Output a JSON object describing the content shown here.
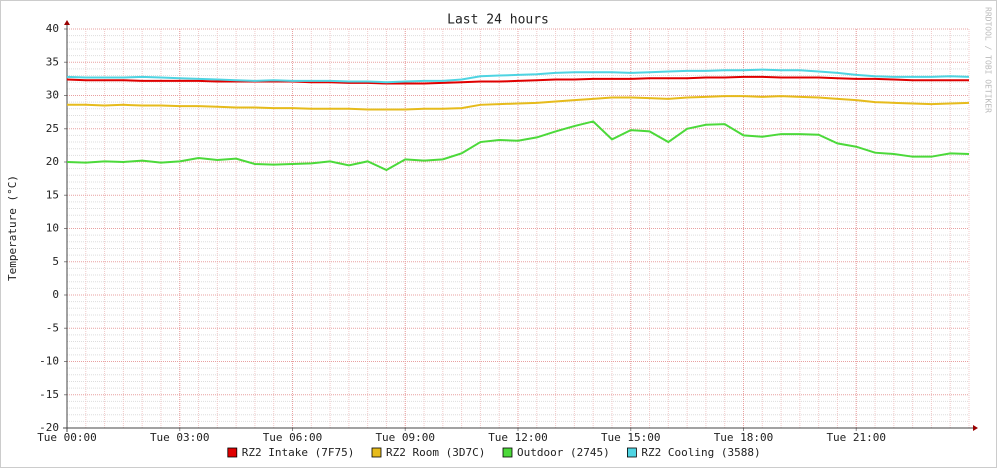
{
  "chart_data": {
    "type": "line",
    "title": "Last 24 hours",
    "ylabel": "Temperature (°C)",
    "watermark": "RRDTOOL / TOBI OETIKER",
    "x": [
      0,
      0.5,
      1,
      1.5,
      2,
      2.5,
      3,
      3.5,
      4,
      4.5,
      5,
      5.5,
      6,
      6.5,
      7,
      7.5,
      8,
      8.5,
      9,
      9.5,
      10,
      10.5,
      11,
      11.5,
      12,
      12.5,
      13,
      13.5,
      14,
      14.5,
      15,
      15.5,
      16,
      16.5,
      17,
      17.5,
      18,
      18.5,
      19,
      19.5,
      20,
      20.5,
      21,
      21.5,
      22,
      22.5,
      23,
      23.5,
      24
    ],
    "xlim": [
      0,
      24
    ],
    "xticks": [
      {
        "value": 0,
        "label": "Tue 00:00"
      },
      {
        "value": 3,
        "label": "Tue 03:00"
      },
      {
        "value": 6,
        "label": "Tue 06:00"
      },
      {
        "value": 9,
        "label": "Tue 09:00"
      },
      {
        "value": 12,
        "label": "Tue 12:00"
      },
      {
        "value": 15,
        "label": "Tue 15:00"
      },
      {
        "value": 18,
        "label": "Tue 18:00"
      },
      {
        "value": 21,
        "label": "Tue 21:00"
      }
    ],
    "ylim": [
      -20,
      40
    ],
    "yticks": [
      -20,
      -15,
      -10,
      -5,
      0,
      5,
      10,
      15,
      20,
      25,
      30,
      35,
      40
    ],
    "grid": true,
    "legend": "bottom",
    "series": [
      {
        "name": "RZ2 Intake (7F75)",
        "color": "#e00000",
        "values": [
          32.4,
          32.3,
          32.3,
          32.3,
          32.2,
          32.2,
          32.2,
          32.2,
          32.1,
          32.1,
          32.1,
          32.1,
          32.1,
          32.0,
          32.0,
          31.9,
          31.9,
          31.8,
          31.8,
          31.8,
          31.9,
          32.0,
          32.1,
          32.1,
          32.2,
          32.3,
          32.4,
          32.4,
          32.5,
          32.5,
          32.5,
          32.6,
          32.6,
          32.6,
          32.7,
          32.7,
          32.8,
          32.8,
          32.7,
          32.7,
          32.7,
          32.6,
          32.5,
          32.5,
          32.4,
          32.3,
          32.3,
          32.3,
          32.3
        ]
      },
      {
        "name": "RZ2 Room (3D7C)",
        "color": "#e6bb1c",
        "values": [
          28.6,
          28.6,
          28.5,
          28.6,
          28.5,
          28.5,
          28.4,
          28.4,
          28.3,
          28.2,
          28.2,
          28.1,
          28.1,
          28.0,
          28.0,
          28.0,
          27.9,
          27.9,
          27.9,
          28.0,
          28.0,
          28.1,
          28.6,
          28.7,
          28.8,
          28.9,
          29.1,
          29.3,
          29.5,
          29.7,
          29.7,
          29.6,
          29.5,
          29.7,
          29.8,
          29.9,
          29.9,
          29.8,
          29.9,
          29.8,
          29.7,
          29.5,
          29.3,
          29.0,
          28.9,
          28.8,
          28.7,
          28.8,
          28.9
        ]
      },
      {
        "name": "Outdoor (2745)",
        "color": "#4cd93a",
        "values": [
          20.0,
          19.9,
          20.1,
          20.0,
          20.2,
          19.9,
          20.1,
          20.6,
          20.3,
          20.5,
          19.7,
          19.6,
          19.7,
          19.8,
          20.1,
          19.5,
          20.1,
          18.8,
          20.4,
          20.2,
          20.4,
          21.3,
          23.0,
          23.3,
          23.2,
          23.7,
          24.6,
          25.4,
          26.1,
          23.4,
          24.8,
          24.6,
          23.0,
          25.0,
          25.6,
          25.7,
          24.0,
          23.8,
          24.2,
          24.2,
          24.1,
          22.8,
          22.3,
          21.4,
          21.2,
          20.8,
          20.8,
          21.3,
          21.2
        ]
      },
      {
        "name": "RZ2 Cooling (3588)",
        "color": "#4fd4e2",
        "values": [
          32.8,
          32.7,
          32.7,
          32.7,
          32.8,
          32.7,
          32.6,
          32.5,
          32.4,
          32.3,
          32.2,
          32.3,
          32.2,
          32.2,
          32.2,
          32.1,
          32.1,
          32.0,
          32.1,
          32.2,
          32.2,
          32.4,
          32.9,
          33.0,
          33.1,
          33.2,
          33.4,
          33.5,
          33.5,
          33.5,
          33.4,
          33.5,
          33.6,
          33.7,
          33.7,
          33.8,
          33.8,
          33.9,
          33.8,
          33.8,
          33.6,
          33.4,
          33.1,
          32.9,
          32.8,
          32.8,
          32.8,
          32.9,
          32.8
        ]
      }
    ]
  }
}
